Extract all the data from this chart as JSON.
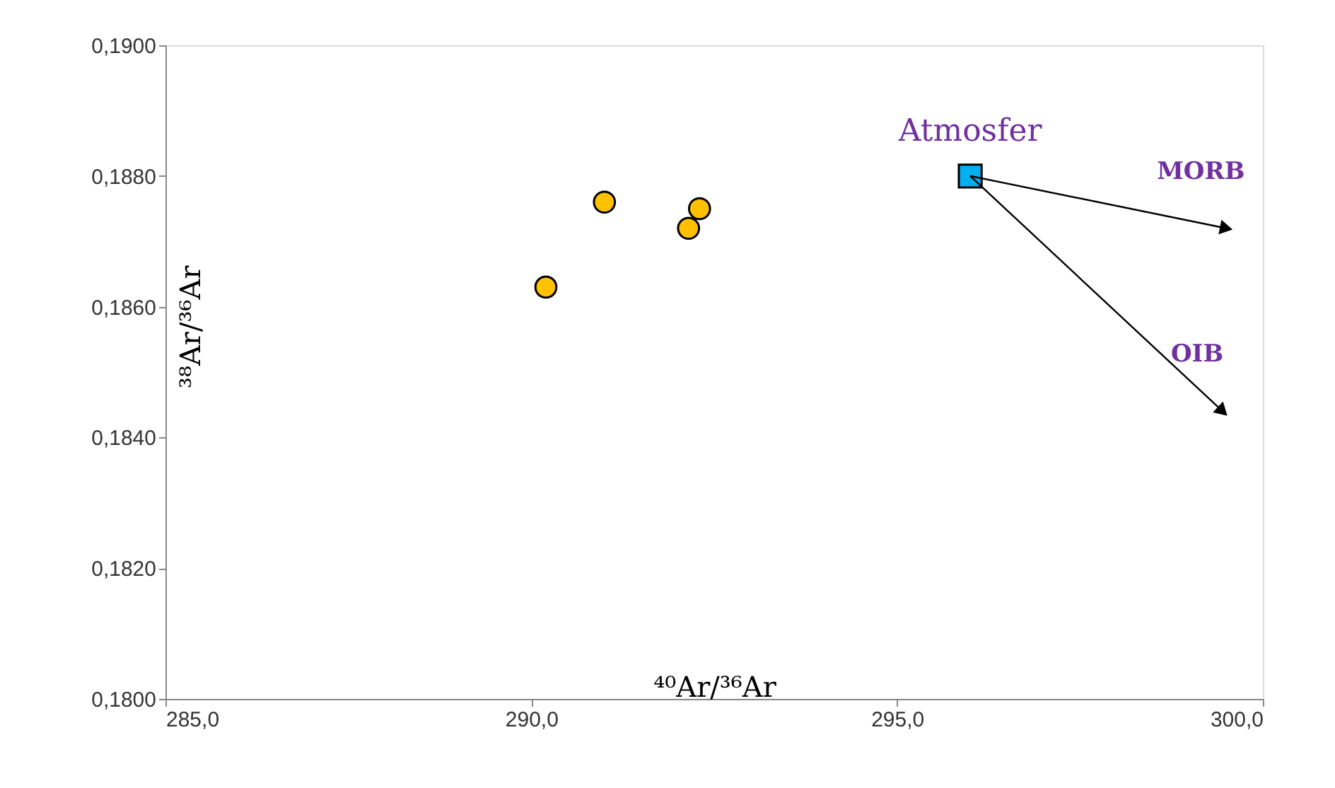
{
  "chart_data": {
    "type": "scatter",
    "xlabel": "⁴⁰Ar/³⁶Ar",
    "ylabel": "³⁸Ar/³⁶Ar",
    "xlim": [
      285,
      300
    ],
    "ylim": [
      0.18,
      0.19
    ],
    "xticks": [
      {
        "value": 285,
        "label": "285,0"
      },
      {
        "value": 290,
        "label": "290,0"
      },
      {
        "value": 295,
        "label": "295,0"
      },
      {
        "value": 300,
        "label": "300,0"
      }
    ],
    "yticks": [
      {
        "value": 0.18,
        "label": "0,1800"
      },
      {
        "value": 0.182,
        "label": "0,1820"
      },
      {
        "value": 0.184,
        "label": "0,1840"
      },
      {
        "value": 0.186,
        "label": "0,1860"
      },
      {
        "value": 0.188,
        "label": "0,1880"
      },
      {
        "value": 0.19,
        "label": "0,1900"
      }
    ],
    "series": [
      {
        "marker": "circle",
        "color": "#ffc000",
        "x": [
          290.2,
          291.0,
          292.15,
          292.3
        ],
        "values": [
          0.1863,
          0.1876,
          0.1872,
          0.1875
        ]
      },
      {
        "marker": "square",
        "color": "#00b0f0",
        "name": "Atmosfer",
        "x": [
          296.0
        ],
        "values": [
          0.188
        ]
      },
      {
        "type": "line",
        "marker": "triangle",
        "color": "#000000",
        "name": "MORB",
        "x": [
          296.0,
          299.5
        ],
        "values": [
          0.188,
          0.1872
        ]
      },
      {
        "type": "line",
        "marker": "triangle",
        "color": "#000000",
        "name": "OIB",
        "x": [
          296.0,
          299.45
        ],
        "values": [
          0.188,
          0.1844
        ]
      }
    ]
  }
}
